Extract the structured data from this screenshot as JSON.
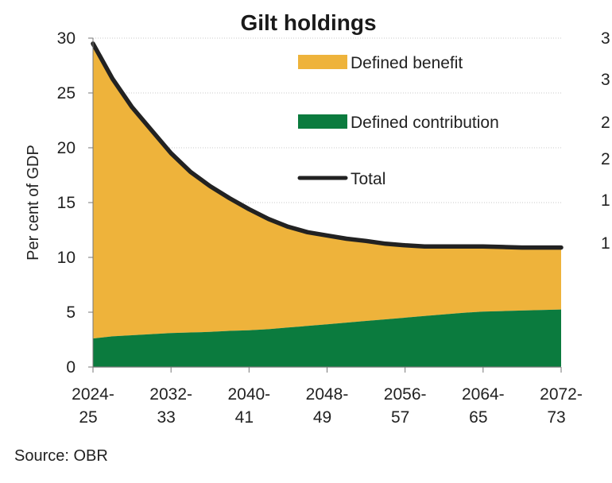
{
  "chart_data": {
    "type": "area",
    "title": "Gilt holdings",
    "xlabel": "",
    "ylabel": "Per cent of GDP",
    "ylim": [
      0,
      30
    ],
    "yticks": [
      "0",
      "5",
      "10",
      "15",
      "20",
      "25",
      "30"
    ],
    "x": [
      2024,
      2026,
      2028,
      2030,
      2032,
      2034,
      2036,
      2038,
      2040,
      2042,
      2044,
      2046,
      2048,
      2050,
      2052,
      2054,
      2056,
      2058,
      2060,
      2062,
      2064,
      2066,
      2068,
      2070,
      2072
    ],
    "xticks": [
      {
        "year": 2024,
        "line1": "2024-",
        "line2": "25"
      },
      {
        "year": 2032,
        "line1": "2032-",
        "line2": "33"
      },
      {
        "year": 2040,
        "line1": "2040-",
        "line2": "41"
      },
      {
        "year": 2048,
        "line1": "2048-",
        "line2": "49"
      },
      {
        "year": 2056,
        "line1": "2056-",
        "line2": "57"
      },
      {
        "year": 2064,
        "line1": "2064-",
        "line2": "65"
      },
      {
        "year": 2072,
        "line1": "2072-",
        "line2": "73"
      }
    ],
    "series": [
      {
        "name": "Defined contribution",
        "kind": "area",
        "color": "#0b7b3e",
        "values": [
          2.6,
          2.8,
          2.9,
          3.0,
          3.1,
          3.15,
          3.2,
          3.3,
          3.35,
          3.45,
          3.6,
          3.75,
          3.9,
          4.05,
          4.2,
          4.35,
          4.5,
          4.65,
          4.8,
          4.95,
          5.05,
          5.1,
          5.15,
          5.2,
          5.25
        ]
      },
      {
        "name": "Defined benefit",
        "kind": "area",
        "color": "#eeb33b",
        "values": [
          26.9,
          23.5,
          20.8,
          18.6,
          16.4,
          14.65,
          13.3,
          12.1,
          11.05,
          10.05,
          9.2,
          8.55,
          8.1,
          7.65,
          7.3,
          6.9,
          6.6,
          6.35,
          6.2,
          6.05,
          5.95,
          5.85,
          5.75,
          5.7,
          5.65
        ]
      },
      {
        "name": "Total",
        "kind": "line",
        "color": "#222222",
        "values": [
          29.5,
          26.3,
          23.7,
          21.6,
          19.5,
          17.8,
          16.5,
          15.4,
          14.4,
          13.5,
          12.8,
          12.3,
          12.0,
          11.7,
          11.5,
          11.25,
          11.1,
          11.0,
          11.0,
          11.0,
          11.0,
          10.95,
          10.9,
          10.9,
          10.9
        ]
      }
    ],
    "legend": [
      {
        "label": "Defined benefit",
        "swatch": "area",
        "color": "#eeb33b"
      },
      {
        "label": "Defined contribution",
        "swatch": "area",
        "color": "#0b7b3e"
      },
      {
        "label": "Total",
        "swatch": "line",
        "color": "#222222"
      }
    ],
    "legend_position": "top-right",
    "grid": true,
    "cropped_right_tick_fragments": [
      "3",
      "3",
      "2",
      "2",
      "1",
      "1"
    ]
  },
  "source": "Source: OBR"
}
